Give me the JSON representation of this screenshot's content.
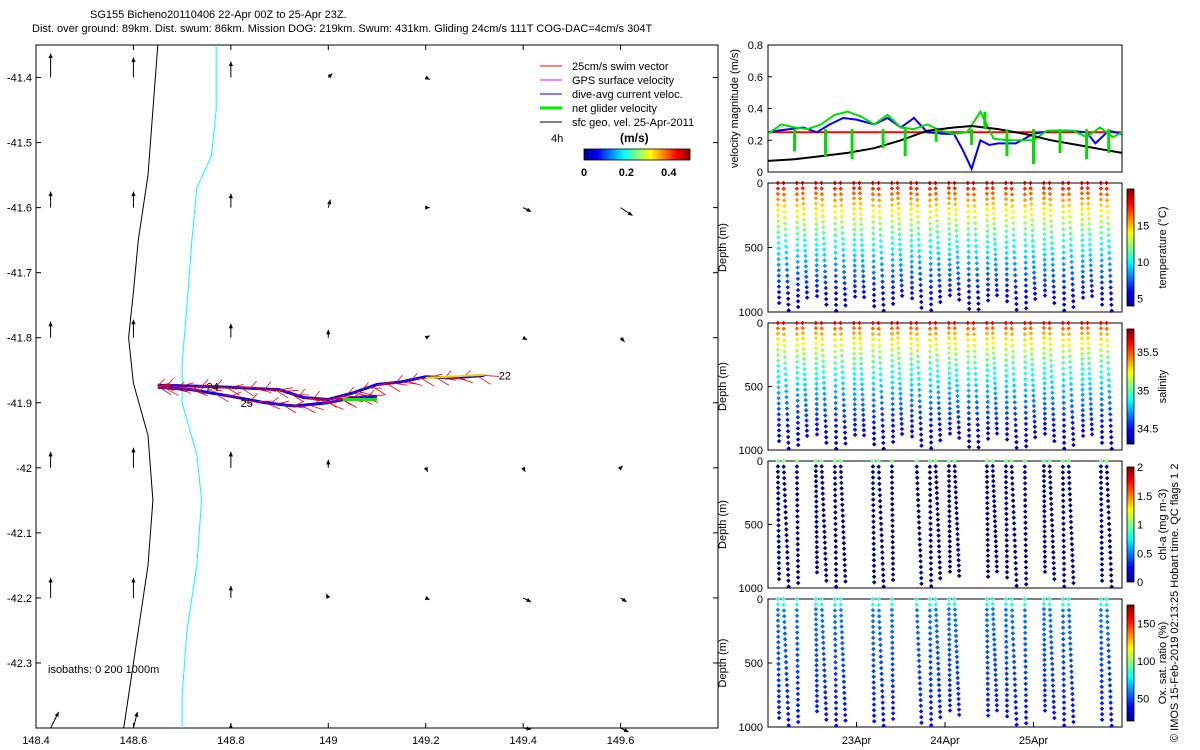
{
  "title": {
    "line1": "SG155 Bicheno20110406 22-Apr 00Z to 25-Apr 23Z.",
    "line2": "Dist. over ground: 89km. Dist. swum: 86km. Mission DOG: 219km. Swum: 431km. Gliding 24cm/s 111T COG-DAC=4cm/s 304T"
  },
  "credit": "© IMOS 15-Feb-2019 02:13:25 Hobart time. QC flags 1  2",
  "colors": {
    "swim": "#ff0000",
    "gps": "#ff00ff",
    "dac": "#0000ff",
    "net": "#00ee00",
    "sfc": "#000000",
    "isobath0": "#000000",
    "isobath200": "#000000",
    "isobath1000": "#00ffff"
  },
  "chart_data": [
    {
      "id": "map",
      "type": "scatter",
      "title": "",
      "xlabel": "",
      "ylabel": "",
      "xlim": [
        148.4,
        149.8
      ],
      "ylim": [
        -42.4,
        -41.35
      ],
      "xticks": [
        "148.4",
        "148.6",
        "148.8",
        "149",
        "149.2",
        "149.4",
        "149.6"
      ],
      "xtick_values": [
        148.4,
        148.6,
        148.8,
        149.0,
        149.2,
        149.4,
        149.6
      ],
      "yticks": [
        "-41.4",
        "-41.5",
        "-41.6",
        "-41.7",
        "-41.8",
        "-41.9",
        "-42",
        "-42.1",
        "-42.2",
        "-42.3"
      ],
      "ytick_values": [
        -41.4,
        -41.5,
        -41.6,
        -41.7,
        -41.8,
        -41.9,
        -42.0,
        -42.1,
        -42.2,
        -42.3
      ],
      "legend": {
        "position": "top-right",
        "entries": [
          {
            "label": "25cm/s swim vector",
            "color": "#ff0000"
          },
          {
            "label": "GPS surface velocity",
            "color": "#ff00ff"
          },
          {
            "label": "dive-avg current veloc.",
            "color": "#0000ff"
          },
          {
            "label": "net glider velocity",
            "color": "#00ee00"
          },
          {
            "label": "sfc geo. vel. 25-Apr-2011",
            "color": "#000000"
          }
        ],
        "extra_label": "4h"
      },
      "colorbar": {
        "label": "(m/s)",
        "ticks": [
          "0",
          "0.2",
          "0.4"
        ],
        "range": [
          0,
          0.5
        ]
      },
      "annotations": [
        {
          "text": "22",
          "x": 149.35,
          "y": -41.858
        },
        {
          "text": "24",
          "x": 148.75,
          "y": -41.875
        },
        {
          "text": "25",
          "x": 148.82,
          "y": -41.9
        }
      ],
      "isobaths_label": "isobaths: 0   200  1000m",
      "isobath_200": [
        [
          148.65,
          -41.35
        ],
        [
          148.64,
          -41.45
        ],
        [
          148.63,
          -41.55
        ],
        [
          148.61,
          -41.65
        ],
        [
          148.6,
          -41.73
        ],
        [
          148.59,
          -41.8
        ],
        [
          148.6,
          -41.87
        ],
        [
          148.63,
          -41.95
        ],
        [
          148.64,
          -42.05
        ],
        [
          148.63,
          -42.15
        ],
        [
          148.61,
          -42.25
        ],
        [
          148.59,
          -42.35
        ],
        [
          148.58,
          -42.4
        ]
      ],
      "isobath_1000": [
        [
          148.77,
          -41.35
        ],
        [
          148.77,
          -41.45
        ],
        [
          148.76,
          -41.52
        ],
        [
          148.73,
          -41.57
        ],
        [
          148.72,
          -41.65
        ],
        [
          148.71,
          -41.75
        ],
        [
          148.7,
          -41.84
        ],
        [
          148.7,
          -41.9
        ],
        [
          148.73,
          -41.98
        ],
        [
          148.74,
          -42.05
        ],
        [
          148.73,
          -42.15
        ],
        [
          148.71,
          -42.25
        ],
        [
          148.7,
          -42.35
        ],
        [
          148.7,
          -42.4
        ]
      ],
      "track": [
        [
          149.32,
          -41.858
        ],
        [
          149.25,
          -41.862
        ],
        [
          149.2,
          -41.86
        ],
        [
          149.15,
          -41.868
        ],
        [
          149.1,
          -41.872
        ],
        [
          149.05,
          -41.885
        ],
        [
          149.0,
          -41.895
        ],
        [
          148.95,
          -41.892
        ],
        [
          148.9,
          -41.88
        ],
        [
          148.85,
          -41.878
        ],
        [
          148.8,
          -41.876
        ],
        [
          148.75,
          -41.875
        ],
        [
          148.7,
          -41.874
        ],
        [
          148.65,
          -41.873
        ]
      ],
      "track_return": [
        [
          148.65,
          -41.876
        ],
        [
          148.72,
          -41.88
        ],
        [
          148.8,
          -41.89
        ],
        [
          148.87,
          -41.9
        ],
        [
          148.93,
          -41.905
        ],
        [
          149.0,
          -41.9
        ],
        [
          149.05,
          -41.892
        ],
        [
          149.1,
          -41.89
        ]
      ],
      "geo_vectors": [
        {
          "x": 148.43,
          "y": -41.4,
          "u": 0,
          "v": 0.06
        },
        {
          "x": 148.6,
          "y": -41.4,
          "u": 0,
          "v": 0.05
        },
        {
          "x": 148.8,
          "y": -41.4,
          "u": 0,
          "v": 0.04
        },
        {
          "x": 149.0,
          "y": -41.4,
          "u": 0.01,
          "v": 0.01
        },
        {
          "x": 149.2,
          "y": -41.4,
          "u": 0.01,
          "v": -0.005
        },
        {
          "x": 148.43,
          "y": -41.6,
          "u": 0,
          "v": 0.04
        },
        {
          "x": 148.6,
          "y": -41.6,
          "u": 0,
          "v": 0.04
        },
        {
          "x": 148.8,
          "y": -41.6,
          "u": 0,
          "v": 0.035
        },
        {
          "x": 149.0,
          "y": -41.6,
          "u": 0.005,
          "v": 0.02
        },
        {
          "x": 149.2,
          "y": -41.6,
          "u": 0.01,
          "v": 0
        },
        {
          "x": 149.4,
          "y": -41.6,
          "u": 0.02,
          "v": -0.01
        },
        {
          "x": 149.6,
          "y": -41.6,
          "u": 0.03,
          "v": -0.02
        },
        {
          "x": 148.43,
          "y": -41.8,
          "u": 0,
          "v": 0.04
        },
        {
          "x": 148.6,
          "y": -41.8,
          "u": 0,
          "v": 0.045
        },
        {
          "x": 148.8,
          "y": -41.8,
          "u": 0,
          "v": 0.035
        },
        {
          "x": 149.0,
          "y": -41.8,
          "u": 0,
          "v": 0.02
        },
        {
          "x": 149.2,
          "y": -41.8,
          "u": 0.01,
          "v": 0.005
        },
        {
          "x": 149.4,
          "y": -41.8,
          "u": 0.01,
          "v": -0.005
        },
        {
          "x": 149.6,
          "y": -41.8,
          "u": 0.01,
          "v": -0.01
        },
        {
          "x": 148.43,
          "y": -42.0,
          "u": 0,
          "v": 0.04
        },
        {
          "x": 148.6,
          "y": -42.0,
          "u": 0,
          "v": 0.05
        },
        {
          "x": 148.8,
          "y": -42.0,
          "u": 0,
          "v": 0.04
        },
        {
          "x": 149.0,
          "y": -42.0,
          "u": 0,
          "v": 0.02
        },
        {
          "x": 149.2,
          "y": -42.0,
          "u": 0.005,
          "v": -0.01
        },
        {
          "x": 149.4,
          "y": -42.0,
          "u": 0.005,
          "v": -0.01
        },
        {
          "x": 149.6,
          "y": -42.0,
          "u": 0.005,
          "v": 0.005
        },
        {
          "x": 148.43,
          "y": -42.2,
          "u": 0,
          "v": 0.05
        },
        {
          "x": 148.6,
          "y": -42.2,
          "u": 0,
          "v": 0.05
        },
        {
          "x": 148.8,
          "y": -42.2,
          "u": 0,
          "v": 0.03
        },
        {
          "x": 149.0,
          "y": -42.2,
          "u": -0.005,
          "v": 0.01
        },
        {
          "x": 149.2,
          "y": -42.2,
          "u": 0.01,
          "v": -0.005
        },
        {
          "x": 149.4,
          "y": -42.2,
          "u": 0.02,
          "v": -0.01
        },
        {
          "x": 149.6,
          "y": -42.2,
          "u": 0.015,
          "v": -0.01
        },
        {
          "x": 148.43,
          "y": -42.4,
          "u": 0.02,
          "v": 0.04
        },
        {
          "x": 148.6,
          "y": -42.4,
          "u": 0.01,
          "v": 0.04
        },
        {
          "x": 148.8,
          "y": -42.4,
          "u": 0,
          "v": 0.01
        },
        {
          "x": 149.4,
          "y": -42.4,
          "u": 0.02,
          "v": -0.003
        },
        {
          "x": 149.6,
          "y": -42.4,
          "u": 0.02,
          "v": -0.01
        }
      ]
    },
    {
      "id": "velocity",
      "type": "line",
      "ylabel": "velocity magnitude (m/s)",
      "ylim": [
        0,
        0.8
      ],
      "yticks": [
        "0",
        "0.2",
        "0.4",
        "0.6",
        "0.8"
      ],
      "ytick_values": [
        0,
        0.2,
        0.4,
        0.6,
        0.8
      ],
      "xlim": [
        22.0,
        26.0
      ],
      "series": [
        {
          "color": "#ff0000",
          "x": [
            22.0,
            22.4,
            23.0,
            23.8,
            24.4,
            25.0,
            25.6,
            26.0
          ],
          "values": [
            0.25,
            0.25,
            0.25,
            0.25,
            0.25,
            0.25,
            0.25,
            0.25
          ]
        },
        {
          "color": "#0000ff",
          "x": [
            22.0,
            22.1,
            22.25,
            22.4,
            22.55,
            22.7,
            22.85,
            23.0,
            23.2,
            23.35,
            23.5,
            23.65,
            23.8,
            24.0,
            24.1,
            24.2,
            24.3,
            24.4,
            24.5,
            24.6,
            24.8,
            25.0,
            25.2,
            25.4,
            25.6,
            25.7,
            25.85,
            26.0
          ],
          "values": [
            0.25,
            0.26,
            0.27,
            0.28,
            0.25,
            0.3,
            0.34,
            0.33,
            0.3,
            0.34,
            0.28,
            0.34,
            0.25,
            0.24,
            0.24,
            0.14,
            0.02,
            0.2,
            0.17,
            0.18,
            0.18,
            0.24,
            0.26,
            0.26,
            0.25,
            0.18,
            0.26,
            0.24
          ]
        },
        {
          "color": "#00dd00",
          "x": [
            22.0,
            22.15,
            22.3,
            22.45,
            22.6,
            22.75,
            22.9,
            23.05,
            23.2,
            23.35,
            23.5,
            23.65,
            23.8,
            23.95,
            24.1,
            24.25,
            24.4,
            24.55,
            24.7,
            24.85,
            25.0,
            25.15,
            25.3,
            25.45,
            25.6,
            25.75,
            25.9,
            26.0
          ],
          "values": [
            0.24,
            0.3,
            0.28,
            0.27,
            0.3,
            0.36,
            0.38,
            0.35,
            0.3,
            0.36,
            0.28,
            0.27,
            0.3,
            0.26,
            0.24,
            0.25,
            0.38,
            0.21,
            0.2,
            0.2,
            0.2,
            0.26,
            0.26,
            0.26,
            0.22,
            0.28,
            0.22,
            0.25
          ]
        },
        {
          "color": "#000000",
          "x": [
            22.0,
            22.3,
            22.6,
            22.9,
            23.2,
            23.5,
            23.8,
            24.1,
            24.3,
            24.6,
            24.9,
            25.2,
            25.5,
            25.8,
            26.0
          ],
          "values": [
            0.07,
            0.08,
            0.1,
            0.12,
            0.15,
            0.2,
            0.26,
            0.28,
            0.29,
            0.27,
            0.24,
            0.2,
            0.17,
            0.14,
            0.12
          ]
        }
      ],
      "green_drops": [
        [
          22.3,
          0.13
        ],
        [
          22.65,
          0.1
        ],
        [
          22.95,
          0.08
        ],
        [
          23.3,
          0.15
        ],
        [
          23.55,
          0.1
        ],
        [
          23.9,
          0.19
        ],
        [
          24.3,
          0.17
        ],
        [
          24.45,
          0.38
        ],
        [
          24.7,
          0.1
        ],
        [
          25.0,
          0.05
        ],
        [
          25.3,
          0.12
        ],
        [
          25.6,
          0.08
        ],
        [
          25.85,
          0.12
        ]
      ]
    },
    {
      "id": "temperature",
      "type": "scatter",
      "ylabel": "Depth (m)",
      "colorbar_label": "temperature (°C)",
      "colorbar_ticks": [
        "5",
        "10",
        "15"
      ],
      "colorbar_range": [
        4,
        20
      ],
      "ylim": [
        0,
        1000
      ],
      "yticks": [
        "0",
        "500",
        "1000"
      ],
      "ytick_values": [
        0,
        500,
        1000
      ],
      "profile_count": 36,
      "surface_value": 19,
      "deep_value": 4.5
    },
    {
      "id": "salinity",
      "type": "scatter",
      "ylabel": "Depth (m)",
      "colorbar_label": "salinity",
      "colorbar_ticks": [
        "34.5",
        "35",
        "35.5"
      ],
      "colorbar_range": [
        34.3,
        35.8
      ],
      "ylim": [
        0,
        1000
      ],
      "yticks": [
        "0",
        "500",
        "1000"
      ],
      "ytick_values": [
        0,
        500,
        1000
      ],
      "profile_count": 36,
      "surface_value": 35.65,
      "deep_value": 34.35
    },
    {
      "id": "chla",
      "type": "scatter",
      "ylabel": "Depth (m)",
      "colorbar_label": "chl-a (mg m-3)",
      "colorbar_ticks": [
        "0",
        "0.5",
        "1",
        "1.5",
        "2"
      ],
      "colorbar_range": [
        0,
        2
      ],
      "ylim": [
        0,
        1000
      ],
      "yticks": [
        "0",
        "500",
        "1000"
      ],
      "ytick_values": [
        0,
        500,
        1000
      ],
      "profile_count": 22,
      "surface_value": 1.0,
      "deep_value": 0.0
    },
    {
      "id": "oxygen",
      "type": "scatter",
      "ylabel": "Depth (m)",
      "colorbar_label": "Ox. sat. ratio (%)",
      "colorbar_ticks": [
        "50",
        "100",
        "150"
      ],
      "colorbar_range": [
        20,
        175
      ],
      "ylim": [
        0,
        1000
      ],
      "yticks": [
        "0",
        "500",
        "1000"
      ],
      "ytick_values": [
        0,
        500,
        1000
      ],
      "profile_count": 22,
      "surface_value": 80,
      "deep_value": 40
    },
    {
      "id": "time_axis",
      "type": "line",
      "xlim": [
        22.0,
        26.0
      ],
      "xticks": [
        "23Apr",
        "24Apr",
        "25Apr"
      ],
      "xtick_values": [
        23.0,
        24.0,
        25.0
      ]
    }
  ]
}
